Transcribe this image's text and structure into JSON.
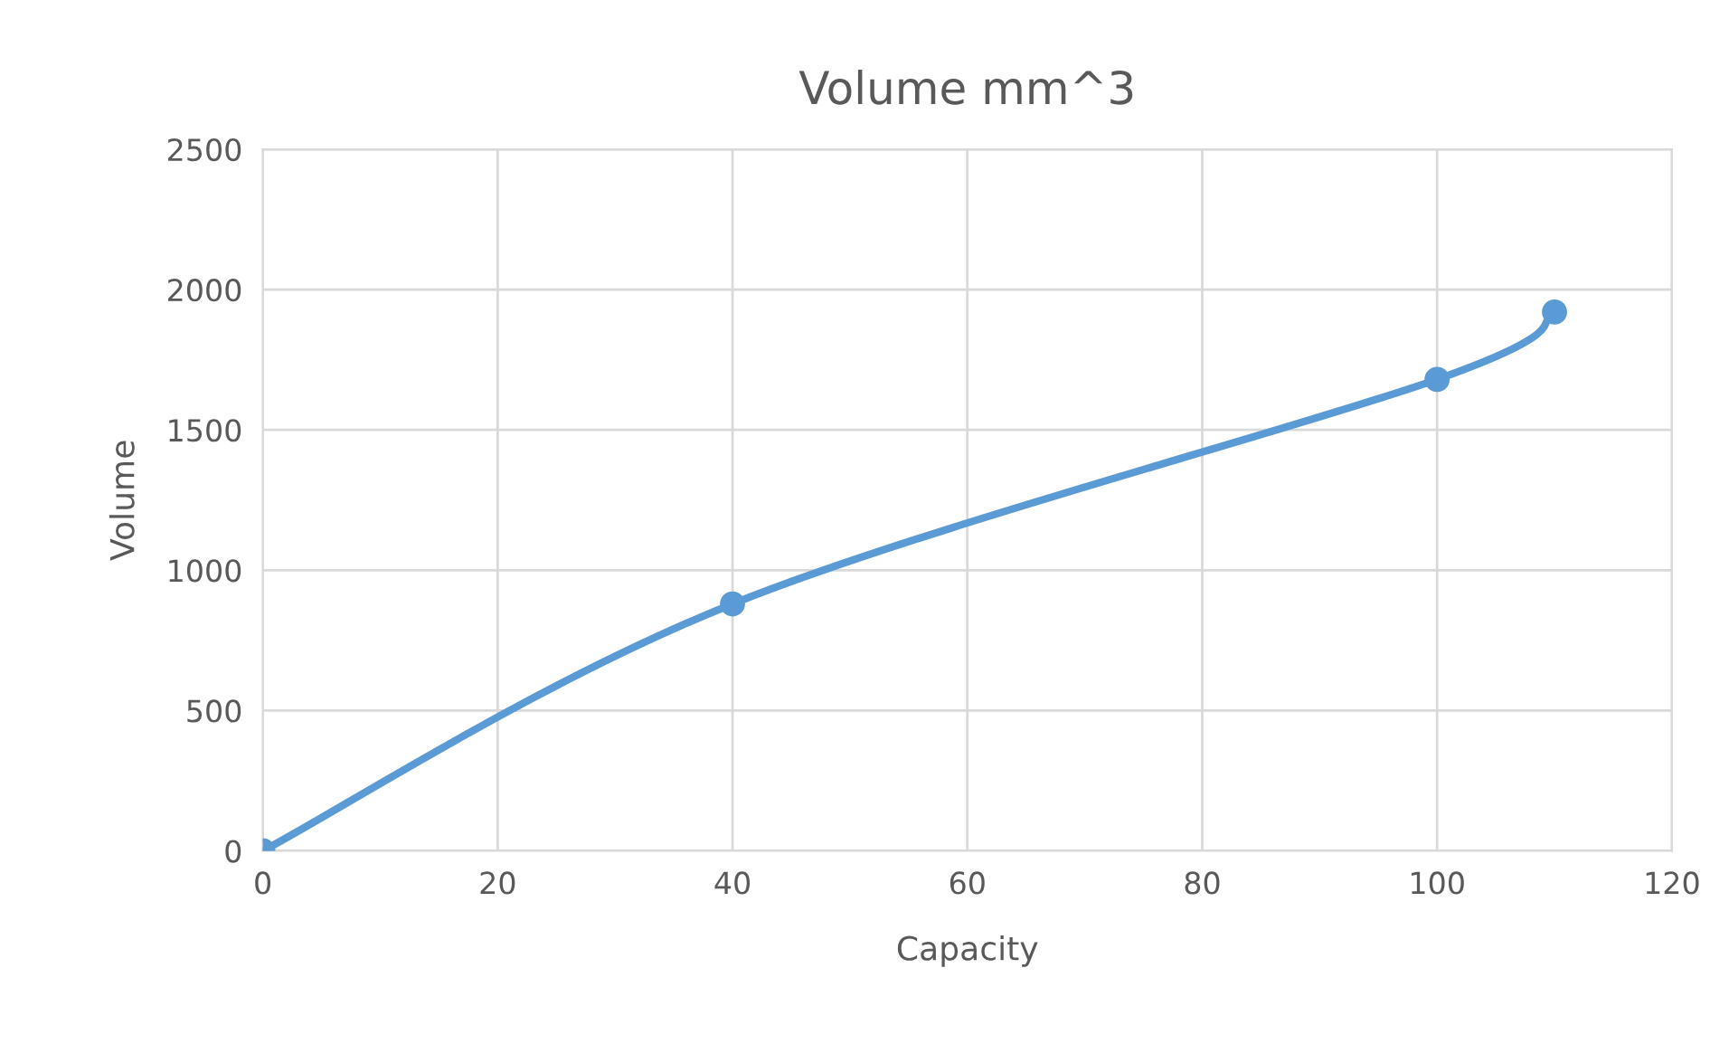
{
  "chart_data": {
    "type": "line",
    "title": "Volume mm^3",
    "xlabel": "Capacity",
    "ylabel": "Volume",
    "x": [
      0,
      40,
      100,
      110
    ],
    "series": [
      {
        "color": "#5b9bd5",
        "values": [
          0,
          880,
          1680,
          1920
        ]
      }
    ],
    "xlim": [
      0,
      120
    ],
    "xticks": [
      0,
      20,
      40,
      60,
      80,
      100,
      120
    ],
    "ylim": [
      0,
      2500
    ],
    "yticks": [
      0,
      500,
      1000,
      1500,
      2000,
      2500
    ],
    "grid": true,
    "marker": "circle",
    "line_style": "solid"
  }
}
